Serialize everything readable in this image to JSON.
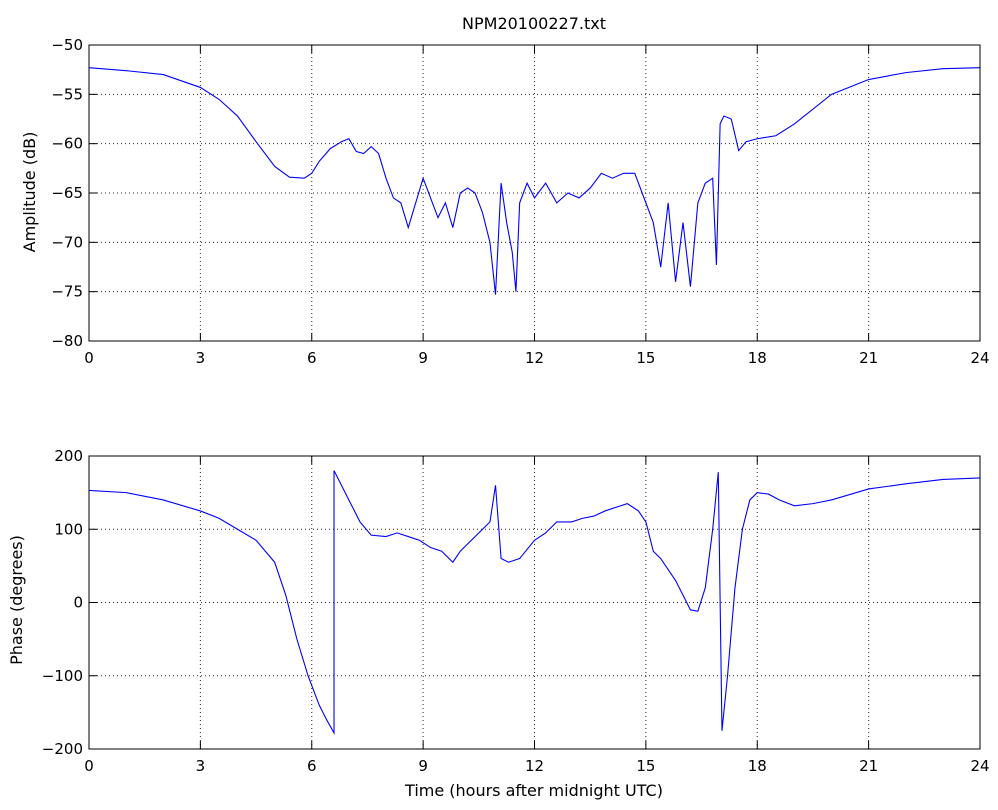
{
  "chart_data": [
    {
      "type": "line",
      "title": "NPM20100227.txt",
      "xlabel": "",
      "ylabel": "Amplitude (dB)",
      "xlim": [
        0,
        24
      ],
      "ylim": [
        -80,
        -50
      ],
      "x_ticks": [
        0,
        3,
        6,
        9,
        12,
        15,
        18,
        21,
        24
      ],
      "y_ticks": [
        -80,
        -75,
        -70,
        -65,
        -60,
        -55,
        -50
      ],
      "x_tick_labels": [
        "0",
        "3",
        "6",
        "9",
        "12",
        "15",
        "18",
        "21",
        "24"
      ],
      "y_tick_labels": [
        "−80",
        "−75",
        "−70",
        "−65",
        "−60",
        "−55",
        "−50"
      ],
      "grid": true,
      "series_color": "#0000ff",
      "series": [
        {
          "x": [
            0,
            1,
            2,
            3,
            3.5,
            4,
            4.5,
            5,
            5.4,
            5.8,
            6,
            6.2,
            6.5,
            6.8,
            7.0,
            7.2,
            7.4,
            7.6,
            7.8,
            8.0,
            8.2,
            8.4,
            8.6,
            8.8,
            9.0,
            9.2,
            9.4,
            9.6,
            9.8,
            10.0,
            10.2,
            10.4,
            10.6,
            10.8,
            10.95,
            11.1,
            11.25,
            11.4,
            11.5,
            11.6,
            11.8,
            12.0,
            12.3,
            12.6,
            12.9,
            13.2,
            13.5,
            13.8,
            14.1,
            14.4,
            14.7,
            15.0,
            15.2,
            15.4,
            15.6,
            15.8,
            16.0,
            16.2,
            16.4,
            16.6,
            16.8,
            16.9,
            17.0,
            17.1,
            17.3,
            17.5,
            17.7,
            18.0,
            18.5,
            19,
            20,
            21,
            22,
            23,
            24
          ],
          "y": [
            -52.3,
            -52.6,
            -53,
            -54.3,
            -55.5,
            -57.2,
            -59.8,
            -62.3,
            -63.4,
            -63.5,
            -63.0,
            -61.8,
            -60.5,
            -59.8,
            -59.5,
            -60.8,
            -61.0,
            -60.3,
            -61.0,
            -63.5,
            -65.5,
            -66.0,
            -68.5,
            -66.0,
            -63.5,
            -65.5,
            -67.5,
            -66.0,
            -68.5,
            -65.0,
            -64.5,
            -65.0,
            -67.0,
            -70.0,
            -75.3,
            -64.0,
            -68.0,
            -71.0,
            -75.0,
            -66.0,
            -64.0,
            -65.5,
            -64.0,
            -66.0,
            -65.0,
            -65.5,
            -64.5,
            -63.0,
            -63.5,
            -63.0,
            -63.0,
            -66.0,
            -68.0,
            -72.5,
            -66.0,
            -74.0,
            -68.0,
            -74.5,
            -66.0,
            -64.0,
            -63.5,
            -72.3,
            -58.0,
            -57.2,
            -57.5,
            -60.7,
            -59.8,
            -59.5,
            -59.2,
            -58.0,
            -55.0,
            -53.5,
            -52.8,
            -52.4,
            -52.3
          ]
        }
      ]
    },
    {
      "type": "line",
      "title": "",
      "xlabel": "Time (hours after midnight UTC)",
      "ylabel": "Phase (degrees)",
      "xlim": [
        0,
        24
      ],
      "ylim": [
        -200,
        200
      ],
      "x_ticks": [
        0,
        3,
        6,
        9,
        12,
        15,
        18,
        21,
        24
      ],
      "y_ticks": [
        -200,
        -100,
        0,
        100,
        200
      ],
      "x_tick_labels": [
        "0",
        "3",
        "6",
        "9",
        "12",
        "15",
        "18",
        "21",
        "24"
      ],
      "y_tick_labels": [
        "−200",
        "−100",
        "0",
        "100",
        "200"
      ],
      "grid": true,
      "series_color": "#0000ff",
      "series": [
        {
          "x": [
            0,
            1,
            2,
            3,
            3.5,
            4,
            4.5,
            5,
            5.3,
            5.6,
            5.9,
            6.2,
            6.4,
            6.6,
            6.6,
            6.8,
            7.0,
            7.3,
            7.6,
            8.0,
            8.3,
            8.6,
            8.9,
            9.2,
            9.5,
            9.8,
            10.0,
            10.3,
            10.6,
            10.8,
            10.95,
            11.1,
            11.3,
            11.6,
            12.0,
            12.3,
            12.6,
            13.0,
            13.3,
            13.6,
            13.9,
            14.2,
            14.5,
            14.8,
            15.0,
            15.2,
            15.4,
            15.6,
            15.8,
            16.0,
            16.2,
            16.4,
            16.6,
            16.8,
            16.95,
            17.05,
            17.2,
            17.4,
            17.6,
            17.8,
            18.0,
            18.3,
            18.6,
            19,
            19.5,
            20,
            21,
            22,
            23,
            24
          ],
          "y": [
            153,
            150,
            140,
            125,
            115,
            100,
            85,
            55,
            10,
            -50,
            -100,
            -140,
            -160,
            -178,
            180,
            160,
            140,
            110,
            92,
            90,
            95,
            90,
            85,
            75,
            70,
            55,
            70,
            85,
            100,
            110,
            160,
            60,
            55,
            60,
            85,
            95,
            110,
            110,
            115,
            118,
            125,
            130,
            135,
            125,
            110,
            70,
            60,
            45,
            30,
            10,
            -10,
            -12,
            20,
            100,
            178,
            -175,
            -100,
            20,
            100,
            140,
            150,
            148,
            140,
            132,
            135,
            140,
            155,
            162,
            168,
            170
          ]
        }
      ]
    }
  ]
}
